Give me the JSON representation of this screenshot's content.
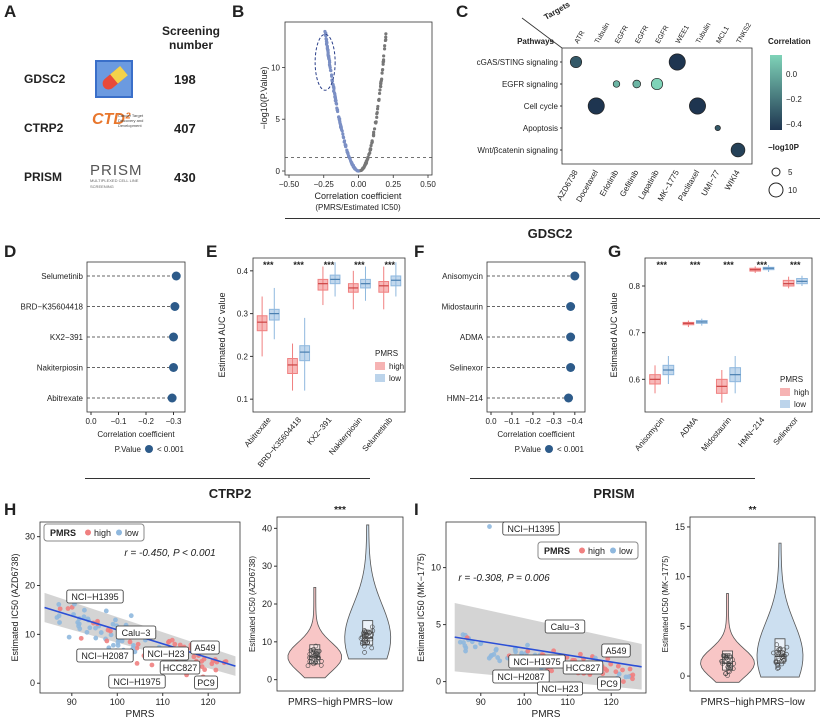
{
  "panel_labels": [
    "A",
    "B",
    "C",
    "D",
    "E",
    "F",
    "G",
    "H",
    "I"
  ],
  "sections": {
    "gdsc2": "GDSC2",
    "ctrp2": "CTRP2",
    "prism": "PRISM"
  },
  "panel_a": {
    "header": "Screening\nnumber",
    "header_line1": "Screening",
    "header_line2": "number",
    "rows": [
      {
        "name": "GDSC2",
        "count": "198",
        "logo": "pill-icon"
      },
      {
        "name": "CTRP2",
        "count": "407",
        "logo": "ctd2-logo",
        "logo_text": "CTD²",
        "logo_sub": "Cancer Target Discovery and Development"
      },
      {
        "name": "PRISM",
        "count": "430",
        "logo": "prism-logo",
        "logo_text": "PRISM",
        "logo_sub": "MULTIPLEXED CELL LINE SCREENING"
      }
    ]
  },
  "chart_data": [
    {
      "panel": "B",
      "type": "scatter",
      "xlabel": "Correlation coefficient",
      "xlabel2": "(PMRS/Estimated IC50)",
      "ylabel": "−log10(P.Value)",
      "xlim": [
        -0.5,
        0.5
      ],
      "ylim": [
        0,
        14
      ],
      "xticks": [
        "−0.50",
        "−0.25",
        "0.00",
        "0.25",
        "0.50"
      ],
      "yticks": [
        "0",
        "5",
        "10"
      ],
      "threshold_y": 1.3,
      "colors": {
        "negative": "#7b8fc4",
        "positive": "#777777"
      }
    },
    {
      "panel": "C",
      "type": "bubble",
      "targets": [
        "ATR",
        "Tubulin",
        "EGFR",
        "EGFR",
        "EGFR",
        "WEE1",
        "Tubulin",
        "MCL1",
        "TNKS2"
      ],
      "drugs": [
        "AZD6738",
        "Docetaxel",
        "Erlotinib",
        "Gefitinib",
        "Lapatinib",
        "MK−1775",
        "Paclitaxel",
        "UMI−77",
        "WIKI4"
      ],
      "pathways": [
        "cGAS/STING signaling",
        "EGFR signaling",
        "Cell cycle",
        "Apoptosis",
        "Wnt/βcatenin signaling"
      ],
      "axis_targets": "Targets",
      "axis_pathways": "Pathways",
      "points": [
        {
          "drug": 0,
          "pathway": 0,
          "corr": -0.3,
          "logp": 7
        },
        {
          "drug": 1,
          "pathway": 2,
          "corr": -0.42,
          "logp": 11
        },
        {
          "drug": 2,
          "pathway": 1,
          "corr": 0.0,
          "logp": 3
        },
        {
          "drug": 3,
          "pathway": 1,
          "corr": 0.0,
          "logp": 4
        },
        {
          "drug": 4,
          "pathway": 1,
          "corr": 0.1,
          "logp": 7
        },
        {
          "drug": 5,
          "pathway": 0,
          "corr": -0.42,
          "logp": 11
        },
        {
          "drug": 6,
          "pathway": 2,
          "corr": -0.42,
          "logp": 11
        },
        {
          "drug": 7,
          "pathway": 3,
          "corr": -0.3,
          "logp": 2
        },
        {
          "drug": 8,
          "pathway": 4,
          "corr": -0.38,
          "logp": 9
        }
      ],
      "legend_color_title": "Correlation",
      "legend_color_ticks": [
        "0.0",
        "−0.2",
        "−0.4"
      ],
      "legend_size_title": "−log10P",
      "legend_size_ticks": [
        "5",
        "10"
      ]
    },
    {
      "panel": "D",
      "type": "lollipop",
      "drugs": [
        "Selumetinib",
        "BRD−K35604418",
        "KX2−391",
        "Nakiterpiosin",
        "Abitrexate"
      ],
      "values": [
        -0.31,
        -0.305,
        -0.3,
        -0.3,
        -0.295
      ],
      "xlabel": "Correlation coefficient",
      "xticks": [
        "0.0",
        "−0.1",
        "−0.2",
        "−0.3"
      ],
      "legend_title": "P.Value",
      "legend_label": "< 0.001"
    },
    {
      "panel": "E",
      "type": "box",
      "drugs": [
        "Abitrexate",
        "BRD−K35604418",
        "KX2−391",
        "Nakiterpiosin",
        "Selumetinib"
      ],
      "ylabel": "Estimated AUC value",
      "yticks": [
        "0.1",
        "0.2",
        "0.3",
        "0.4"
      ],
      "ylim": [
        0.07,
        0.43
      ],
      "series": [
        {
          "name": "high",
          "medians": [
            0.28,
            0.18,
            0.37,
            0.36,
            0.365
          ],
          "q1": [
            0.26,
            0.16,
            0.355,
            0.35,
            0.35
          ],
          "q3": [
            0.295,
            0.195,
            0.38,
            0.37,
            0.375
          ],
          "lo": [
            0.2,
            0.12,
            0.32,
            0.31,
            0.31
          ],
          "hi": [
            0.34,
            0.23,
            0.41,
            0.4,
            0.41
          ]
        },
        {
          "name": "low",
          "medians": [
            0.3,
            0.21,
            0.38,
            0.37,
            0.378
          ],
          "q1": [
            0.285,
            0.19,
            0.37,
            0.36,
            0.365
          ],
          "q3": [
            0.31,
            0.225,
            0.39,
            0.38,
            0.388
          ],
          "lo": [
            0.24,
            0.12,
            0.34,
            0.33,
            0.34
          ],
          "hi": [
            0.36,
            0.29,
            0.42,
            0.41,
            0.42
          ]
        }
      ],
      "sig": [
        "***",
        "***",
        "***",
        "***",
        "***"
      ],
      "legend_title": "PMRS"
    },
    {
      "panel": "F",
      "type": "lollipop",
      "drugs": [
        "Anisomycin",
        "Midostaurin",
        "ADMA",
        "Selinexor",
        "HMN−214"
      ],
      "values": [
        -0.4,
        -0.38,
        -0.38,
        -0.38,
        -0.37
      ],
      "xlabel": "Correlation coefficient",
      "xticks": [
        "0.0",
        "−0.1",
        "−0.2",
        "−0.3",
        "−0.4"
      ],
      "legend_title": "P.Value",
      "legend_label": "< 0.001"
    },
    {
      "panel": "G",
      "type": "box",
      "drugs": [
        "Anisomycin",
        "ADMA",
        "Midostaurin",
        "HMN−214",
        "Selinexor"
      ],
      "ylabel": "Estimated AUC value",
      "yticks": [
        "0.6",
        "0.7",
        "0.8"
      ],
      "ylim": [
        0.53,
        0.86
      ],
      "series": [
        {
          "name": "high",
          "medians": [
            0.6,
            0.72,
            0.585,
            0.835,
            0.805
          ],
          "q1": [
            0.59,
            0.717,
            0.57,
            0.832,
            0.8
          ],
          "q3": [
            0.61,
            0.722,
            0.6,
            0.838,
            0.812
          ],
          "lo": [
            0.57,
            0.712,
            0.55,
            0.828,
            0.795
          ],
          "hi": [
            0.63,
            0.726,
            0.62,
            0.842,
            0.82
          ]
        },
        {
          "name": "low",
          "medians": [
            0.62,
            0.723,
            0.61,
            0.838,
            0.81
          ],
          "q1": [
            0.61,
            0.72,
            0.595,
            0.835,
            0.805
          ],
          "q3": [
            0.63,
            0.726,
            0.625,
            0.84,
            0.816
          ],
          "lo": [
            0.59,
            0.715,
            0.57,
            0.83,
            0.8
          ],
          "hi": [
            0.65,
            0.73,
            0.65,
            0.845,
            0.822
          ]
        }
      ],
      "sig": [
        "***",
        "***",
        "***",
        "***",
        "***"
      ],
      "legend_title": "PMRS"
    },
    {
      "panel": "H",
      "type": "scatter",
      "xlabel": "PMRS",
      "ylabel": "Estimated IC50 (AZD6738)",
      "xticks": [
        "90",
        "100",
        "110",
        "120"
      ],
      "yticks": [
        "0",
        "10",
        "20",
        "30"
      ],
      "xlim": [
        83,
        127
      ],
      "ylim": [
        -2,
        33
      ],
      "annotation": "r = -0.450, P < 0.001",
      "legend_title": "PMRS",
      "legend_items": [
        "high",
        "low"
      ],
      "labels": [
        "NCI−H1395",
        "Calu−3",
        "NCI−H2087",
        "NCI−H23",
        "A549",
        "HCC827",
        "NCI−H1975",
        "PC9"
      ],
      "fit": {
        "x": [
          84,
          126
        ],
        "y": [
          15.5,
          3.5
        ]
      }
    },
    {
      "panel": "H2",
      "type": "violin",
      "categories": [
        "PMRS−high",
        "PMRS−low"
      ],
      "ylabel": "Estimated IC50 (AZD6738)",
      "yticks": [
        "0",
        "10",
        "20",
        "30",
        "40"
      ],
      "ylim": [
        -3,
        43
      ],
      "medians": [
        6,
        11
      ],
      "sig": "***"
    },
    {
      "panel": "I",
      "type": "scatter",
      "xlabel": "PMRS",
      "ylabel": "Estimated IC50 (MK−1775)",
      "xticks": [
        "90",
        "100",
        "110",
        "120"
      ],
      "yticks": [
        "0",
        "5",
        "10"
      ],
      "xlim": [
        82,
        128
      ],
      "ylim": [
        -1,
        14
      ],
      "annotation": "r = -0.308, P = 0.006",
      "legend_title": "PMRS",
      "legend_items": [
        "high",
        "low"
      ],
      "labels": [
        "NCI−H1395",
        "Calu−3",
        "A549",
        "NCI−H1975",
        "HCC827",
        "NCI−H2087",
        "NCI−H23",
        "PC9"
      ],
      "fit": {
        "x": [
          84,
          127
        ],
        "y": [
          3.9,
          1.3
        ]
      }
    },
    {
      "panel": "I2",
      "type": "violin",
      "categories": [
        "PMRS−high",
        "PMRS−low"
      ],
      "ylabel": "Estimated IC50 (MK−1775)",
      "yticks": [
        "0",
        "5",
        "10",
        "15"
      ],
      "ylim": [
        -1.5,
        16
      ],
      "medians": [
        1.3,
        2.0
      ],
      "sig": "**"
    }
  ],
  "colors": {
    "high": "#f08080",
    "low": "#8fb8de",
    "navy": "#1e3550",
    "teal": "#7fd3b8"
  }
}
